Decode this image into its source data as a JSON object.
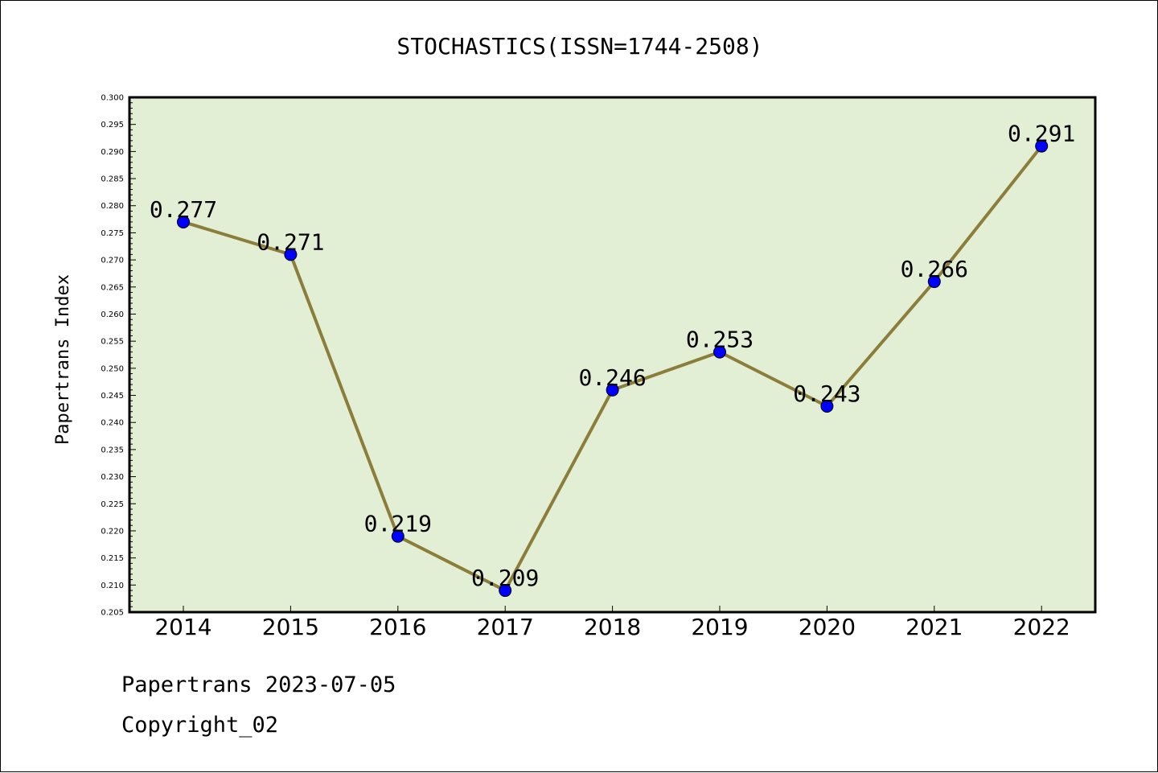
{
  "colors": {
    "plot_background": "#e2efd5",
    "line": "#8b7d3a",
    "marker": "#0000ff",
    "frame": "#000000"
  },
  "chart_data": {
    "type": "line",
    "title": "STOCHASTICS(ISSN=1744-2508)",
    "xlabel": "",
    "ylabel": "Papertrans Index",
    "categories": [
      "2014",
      "2015",
      "2016",
      "2017",
      "2018",
      "2019",
      "2020",
      "2021",
      "2022"
    ],
    "series": [
      {
        "values": [
          0.277,
          0.271,
          0.219,
          0.209,
          0.246,
          0.253,
          0.243,
          0.266,
          0.291
        ]
      }
    ],
    "data_labels": [
      "0.277",
      "0.271",
      "0.219",
      "0.209",
      "0.246",
      "0.253",
      "0.243",
      "0.266",
      "0.291"
    ],
    "ylim": [
      0.205,
      0.3
    ],
    "yticks": [
      "0.205",
      "0.210",
      "0.215",
      "0.220",
      "0.225",
      "0.230",
      "0.235",
      "0.240",
      "0.245",
      "0.250",
      "0.255",
      "0.260",
      "0.265",
      "0.270",
      "0.275",
      "0.280",
      "0.285",
      "0.290",
      "0.295",
      "0.300"
    ],
    "grid": false,
    "legend": "none"
  },
  "footer": {
    "line1": "Papertrans 2023-07-05",
    "line2": "Copyright_02"
  }
}
